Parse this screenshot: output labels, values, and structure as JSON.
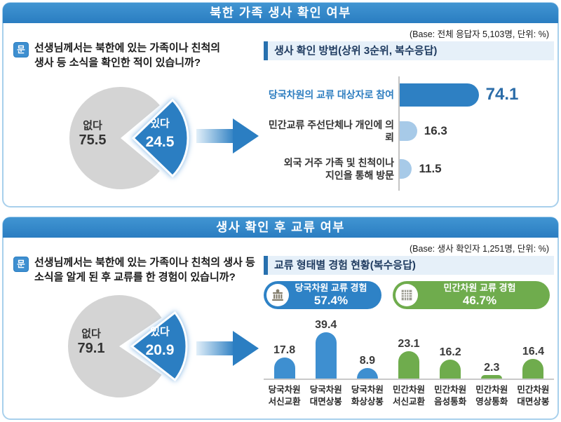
{
  "panel1": {
    "title": "북한 가족 생사 확인 여부",
    "base": "(Base: 전체 응답자 5,103명, 단위: %)",
    "question_icon": "문",
    "question": "선생님께서는 북한에 있는 가족이나 친척의\n생사 등 소식을 확인한 적이 있습니까?",
    "section_title": "생사 확인 방법(상위 3순위, 복수응답)"
  },
  "panel2": {
    "title": "생사 확인 후 교류 여부",
    "base": "(Base: 생사 확인자 1,251명, 단위: %)",
    "question_icon": "문",
    "question": "선생님께서는 북한에 있는 가족이나 친척의 생사 등\n소식을 알게 된 후 교류를 한 경험이 있습니까?",
    "section_title": "교류 형태별 경험 현황(복수응답)",
    "badges": [
      {
        "icon": "government-building-icon",
        "label": "당국차원 교류 경험",
        "value": "57.4%",
        "color": "#2E82C6"
      },
      {
        "icon": "apartment-building-icon",
        "label": "민간차원 교류 경험",
        "value": "46.7%",
        "color": "#6FAC4D"
      }
    ]
  },
  "colors": {
    "titlebar_blue": "#2A7DC1",
    "panel_border": "#A8D0EC",
    "pie_gray": "#D4D4D4",
    "pie_blue": "#2B7EC2",
    "bar_blue": "#2E80C3",
    "bar_light_blue": "#A7CAE8",
    "bar_green": "#6FAC4D",
    "header_navy": "#1E3A5F"
  },
  "chart_data": [
    {
      "type": "pie",
      "title": "북한 가족 생사 확인 여부",
      "categories": [
        "있다",
        "없다"
      ],
      "values": [
        24.5,
        75.5
      ],
      "colors": [
        "#2B7EC2",
        "#D4D4D4"
      ],
      "legend_position": "inside",
      "unit": "%"
    },
    {
      "type": "bar",
      "orientation": "horizontal",
      "title": "생사 확인 방법(상위 3순위, 복수응답)",
      "categories": [
        "당국차원의 교류 대상자로 참여",
        "민간교류 주선단체나 개인에 의뢰",
        "외국 거주 가족 및 친척이나 지인을 통해 방문"
      ],
      "categories_lines": [
        [
          "당국차원의 교류 대상자로 참여"
        ],
        [
          "민간교류 주선단체나 개인에 의뢰"
        ],
        [
          "외국 거주 가족 및 친척이나",
          "지인을 통해 방문"
        ]
      ],
      "values": [
        74.1,
        16.3,
        11.5
      ],
      "colors": [
        "#2E80C3",
        "#A7CAE8",
        "#A7CAE8"
      ],
      "xlim": [
        0,
        100
      ],
      "grid": false,
      "unit": "%"
    },
    {
      "type": "pie",
      "title": "생사 확인 후 교류 여부",
      "categories": [
        "있다",
        "없다"
      ],
      "values": [
        20.9,
        79.1
      ],
      "colors": [
        "#2B7EC2",
        "#D4D4D4"
      ],
      "legend_position": "inside",
      "unit": "%"
    },
    {
      "type": "bar",
      "orientation": "vertical",
      "title": "교류 형태별 경험 현황(복수응답)",
      "series": [
        {
          "name": "당국차원 교류 경험",
          "total": 57.4,
          "color": "#3E8FD0"
        },
        {
          "name": "민간차원 교류 경험",
          "total": 46.7,
          "color": "#6FAC4D"
        }
      ],
      "categories": [
        "당국차원 서신교환",
        "당국차원 대면상봉",
        "당국차원 화상상봉",
        "민간차원 서신교환",
        "민간차원 음성통화",
        "민간차원 영상통화",
        "민간차원 대면상봉"
      ],
      "categories_lines": [
        [
          "당국차원",
          "서신교환"
        ],
        [
          "당국차원",
          "대면상봉"
        ],
        [
          "당국차원",
          "화상상봉"
        ],
        [
          "민간차원",
          "서신교환"
        ],
        [
          "민간차원",
          "음성통화"
        ],
        [
          "민간차원",
          "영상통화"
        ],
        [
          "민간차원",
          "대면상봉"
        ]
      ],
      "values": [
        17.8,
        39.4,
        8.9,
        23.1,
        16.2,
        2.3,
        16.4
      ],
      "colors": [
        "#3E8FD0",
        "#3E8FD0",
        "#3E8FD0",
        "#6FAC4D",
        "#6FAC4D",
        "#6FAC4D",
        "#6FAC4D"
      ],
      "ylim": [
        0,
        45
      ],
      "grid": false,
      "unit": "%"
    }
  ]
}
